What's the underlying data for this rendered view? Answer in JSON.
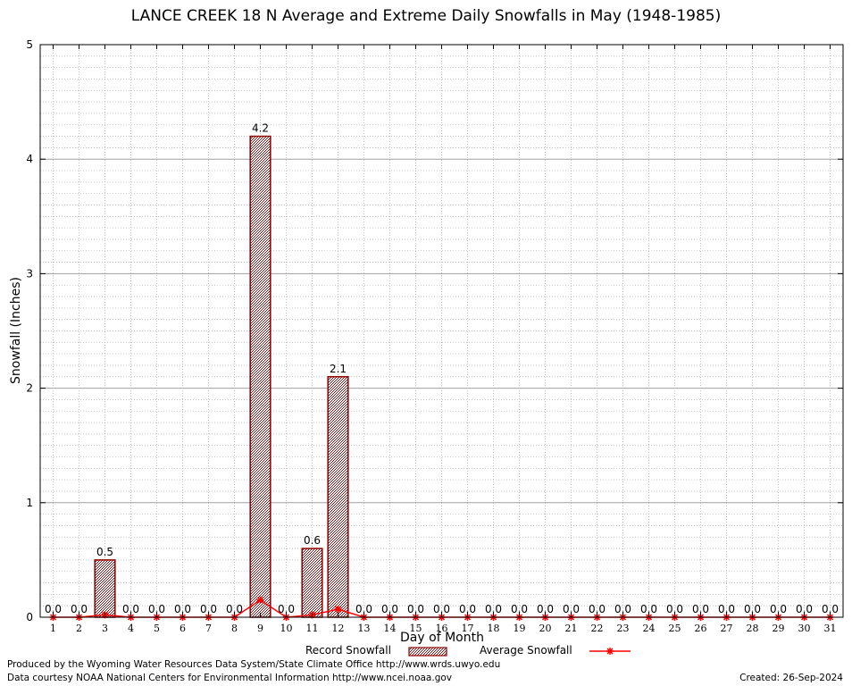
{
  "chart_data": {
    "type": "bar",
    "title": "LANCE CREEK 18 N Average and Extreme Daily Snowfalls in May (1948-1985)",
    "xlabel": "Day of Month",
    "ylabel": "Snowfall (Inches)",
    "ylim": [
      0,
      5
    ],
    "yticks": [
      "0",
      "1",
      "2",
      "3",
      "4",
      "5"
    ],
    "categories": [
      "1",
      "2",
      "3",
      "4",
      "5",
      "6",
      "7",
      "8",
      "9",
      "10",
      "11",
      "12",
      "13",
      "14",
      "15",
      "16",
      "17",
      "18",
      "19",
      "20",
      "21",
      "22",
      "23",
      "24",
      "25",
      "26",
      "27",
      "28",
      "29",
      "30",
      "31"
    ],
    "series": [
      {
        "name": "Record Snowfall",
        "style": "bar",
        "color": "#8b0000",
        "values": [
          0.0,
          0.0,
          0.5,
          0.0,
          0.0,
          0.0,
          0.0,
          0.0,
          4.2,
          0.0,
          0.6,
          2.1,
          0.0,
          0.0,
          0.0,
          0.0,
          0.0,
          0.0,
          0.0,
          0.0,
          0.0,
          0.0,
          0.0,
          0.0,
          0.0,
          0.0,
          0.0,
          0.0,
          0.0,
          0.0,
          0.0
        ],
        "labels": [
          "0.0",
          "0.0",
          "0.5",
          "0.0",
          "0.0",
          "0.0",
          "0.0",
          "0.0",
          "4.2",
          "0.0",
          "0.6",
          "2.1",
          "0.0",
          "0.0",
          "0.0",
          "0.0",
          "0.0",
          "0.0",
          "0.0",
          "0.0",
          "0.0",
          "0.0",
          "0.0",
          "0.0",
          "0.0",
          "0.0",
          "0.0",
          "0.0",
          "0.0",
          "0.0",
          "0.0"
        ]
      },
      {
        "name": "Average Snowfall",
        "style": "line",
        "color": "#ff0000",
        "values": [
          0,
          0,
          0.02,
          0,
          0,
          0,
          0,
          0,
          0.15,
          0,
          0.02,
          0.07,
          0,
          0,
          0,
          0,
          0,
          0,
          0,
          0,
          0,
          0,
          0,
          0,
          0,
          0,
          0,
          0,
          0,
          0,
          0
        ]
      }
    ],
    "grid": true,
    "legend_position": "bottom-center"
  },
  "footer": {
    "credit_line1": "Produced by the Wyoming Water Resources Data System/State Climate Office http://www.wrds.uwyo.edu",
    "credit_line2": "Data courtesy NOAA National Centers for Environmental Information http://www.ncei.noaa.gov",
    "created": "Created:  26-Sep-2024"
  }
}
